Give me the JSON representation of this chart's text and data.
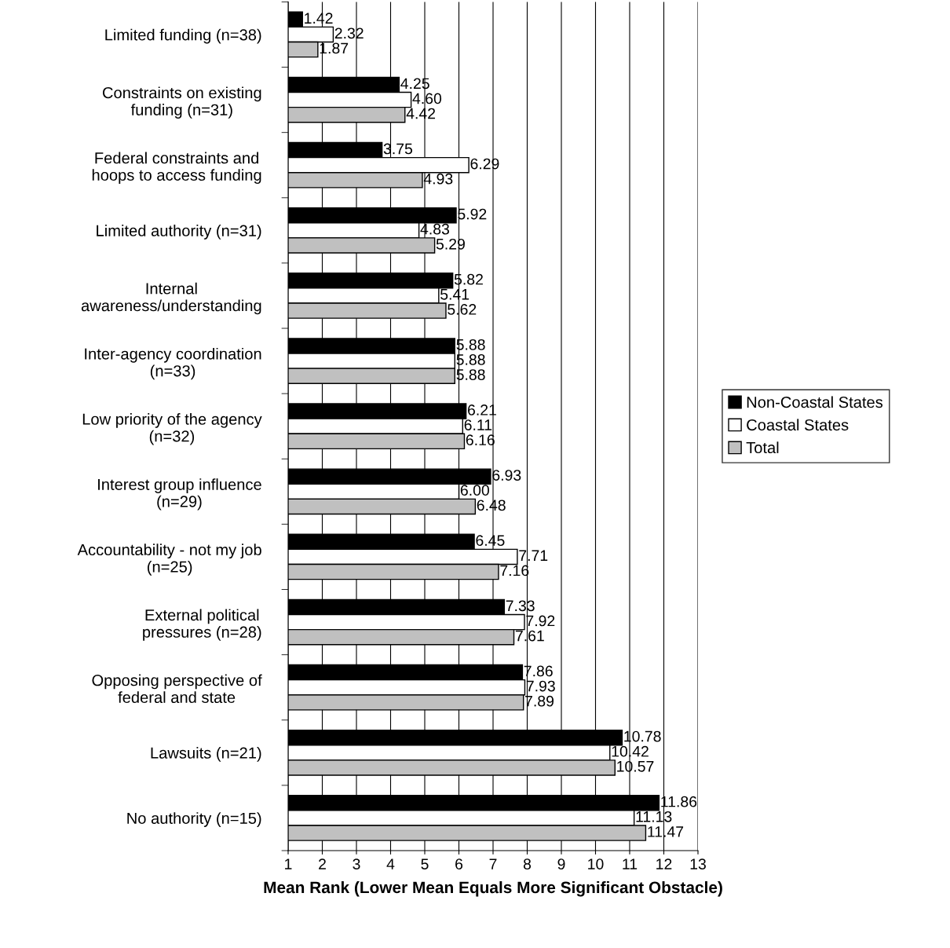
{
  "chart_data": {
    "type": "bar",
    "orientation": "horizontal",
    "xlabel": "Mean Rank (Lower Mean Equals More Significant Obstacle)",
    "categories": [
      "Limited funding (n=38)",
      "Constraints on existing\nfunding (n=31)",
      "Federal constraints and\nhoops to access funding",
      "Limited authority (n=31)",
      "Internal\nawareness/understanding",
      "Inter-agency coordination\n(n=33)",
      "Low priority of the agency\n(n=32)",
      "Interest group influence\n(n=29)",
      "Accountability - not my job\n(n=25)",
      "External political\npressures (n=28)",
      "Opposing perspective of\nfederal and state",
      "Lawsuits (n=21)",
      "No authority (n=15)"
    ],
    "series": [
      {
        "name": "Non-Coastal States",
        "color": "#000000",
        "values": [
          1.42,
          4.25,
          3.75,
          5.92,
          5.82,
          5.88,
          6.21,
          6.93,
          6.45,
          7.33,
          7.86,
          10.78,
          11.86
        ],
        "value_labels": [
          "1.42",
          "4.25",
          "3.75",
          "5.92",
          "5.82",
          "5.88",
          "6.21",
          "6.93",
          "6.45",
          "7.33",
          "7.86",
          "10.78",
          "11.86"
        ]
      },
      {
        "name": "Coastal States",
        "color": "#ffffff",
        "values": [
          2.32,
          4.6,
          6.29,
          4.83,
          5.41,
          5.88,
          6.11,
          6.0,
          7.71,
          7.92,
          7.93,
          10.42,
          11.13
        ],
        "value_labels": [
          "2.32",
          "4.60",
          "6.29",
          "4.83",
          "5.41",
          "5.88",
          "6.11",
          "6.00",
          "7.71",
          "7.92",
          "7.93",
          "10.42",
          "11.13"
        ]
      },
      {
        "name": "Total",
        "color": "#c0c0c0",
        "values": [
          1.87,
          4.42,
          4.93,
          5.29,
          5.62,
          5.88,
          6.16,
          6.48,
          7.16,
          7.61,
          7.89,
          10.57,
          11.47
        ],
        "value_labels": [
          "1.87",
          "4.42",
          "4.93",
          "5.29",
          "5.62",
          "5.88",
          "6.16",
          "6.48",
          "7.16",
          "7.61",
          "7.89",
          "10.57",
          "11.47"
        ]
      }
    ],
    "xlim": [
      1,
      13
    ],
    "xticks": [
      1,
      2,
      3,
      4,
      5,
      6,
      7,
      8,
      9,
      10,
      11,
      12,
      13
    ],
    "grid": "x",
    "legend": "right"
  }
}
